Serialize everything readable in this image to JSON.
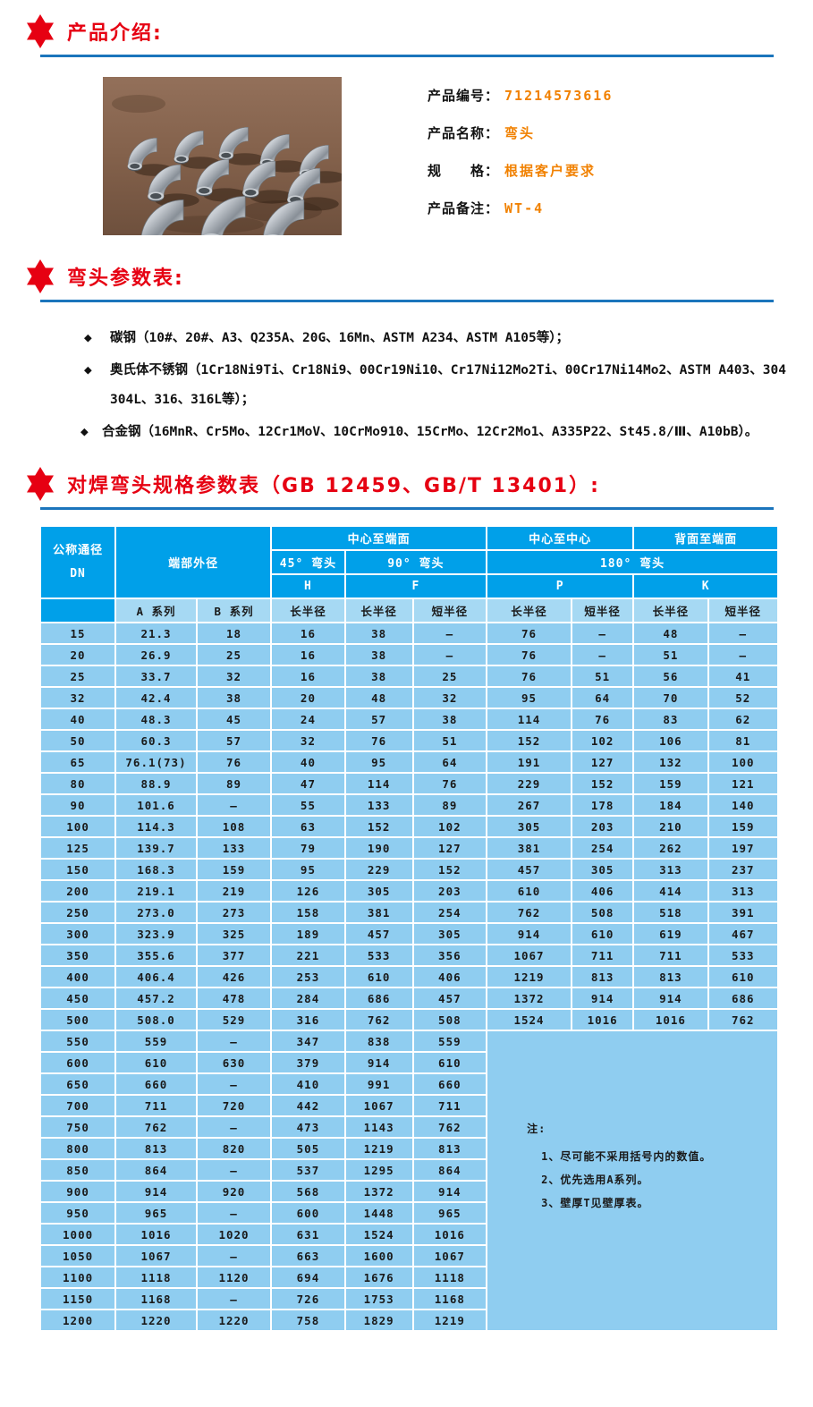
{
  "colors": {
    "accent_red": "#e60012",
    "rule_blue": "#1b75bc",
    "table_header_blue": "#00a0e9",
    "table_subheader_blue": "#a6d9f3",
    "table_row_blue": "#8fcdf0",
    "value_orange": "#f18101"
  },
  "sections": {
    "intro_title": "产品介绍:",
    "params_title": "弯头参数表:",
    "spec_title": "对焊弯头规格参数表（GB 12459、GB/T 13401）:"
  },
  "product": {
    "fields": [
      {
        "label": "产品编号：",
        "value": "71214573616"
      },
      {
        "label": "产品名称：",
        "value": "弯头"
      },
      {
        "label": "规　　格：",
        "value": "根据客户要求"
      },
      {
        "label": "产品备注：",
        "value": "WT-4"
      }
    ]
  },
  "bullet_marker": "◆",
  "materials": [
    "碳钢（10#、20#、A3、Q235A、20G、16Mn、ASTM A234、ASTM A105等）；",
    "奥氏体不锈钢（1Cr18Ni9Ti、Cr18Ni9、00Cr19Ni10、Cr17Ni12Mo2Ti、00Cr17Ni14Mo2、ASTM A403、304 304L、316、316L等）；",
    "合金钢（16MnR、Cr5Mo、12Cr1MoV、10CrMo910、15CrMo、12Cr2Mo1、A335P22、St45.8/Ⅲ、A10bB）。"
  ],
  "table": {
    "header": {
      "dn_title": "公称通径",
      "dn_sub": "DN",
      "end_od": "端部外径",
      "center_to_end": "中心至端面",
      "center_to_center": "中心至中心",
      "back_to_end": "背面至端面",
      "elbow45": "45° 弯头",
      "elbow90": "90° 弯头",
      "elbow180": "180° 弯头",
      "h": "H",
      "f": "F",
      "p": "P",
      "k": "K",
      "series_a": "A 系列",
      "series_b": "B 系列",
      "long_radius": "长半径",
      "short_radius": "短半径"
    },
    "rows": [
      [
        "15",
        "21.3",
        "18",
        "16",
        "38",
        "—",
        "76",
        "—",
        "48",
        "—"
      ],
      [
        "20",
        "26.9",
        "25",
        "16",
        "38",
        "—",
        "76",
        "—",
        "51",
        "—"
      ],
      [
        "25",
        "33.7",
        "32",
        "16",
        "38",
        "25",
        "76",
        "51",
        "56",
        "41"
      ],
      [
        "32",
        "42.4",
        "38",
        "20",
        "48",
        "32",
        "95",
        "64",
        "70",
        "52"
      ],
      [
        "40",
        "48.3",
        "45",
        "24",
        "57",
        "38",
        "114",
        "76",
        "83",
        "62"
      ],
      [
        "50",
        "60.3",
        "57",
        "32",
        "76",
        "51",
        "152",
        "102",
        "106",
        "81"
      ],
      [
        "65",
        "76.1(73)",
        "76",
        "40",
        "95",
        "64",
        "191",
        "127",
        "132",
        "100"
      ],
      [
        "80",
        "88.9",
        "89",
        "47",
        "114",
        "76",
        "229",
        "152",
        "159",
        "121"
      ],
      [
        "90",
        "101.6",
        "—",
        "55",
        "133",
        "89",
        "267",
        "178",
        "184",
        "140"
      ],
      [
        "100",
        "114.3",
        "108",
        "63",
        "152",
        "102",
        "305",
        "203",
        "210",
        "159"
      ],
      [
        "125",
        "139.7",
        "133",
        "79",
        "190",
        "127",
        "381",
        "254",
        "262",
        "197"
      ],
      [
        "150",
        "168.3",
        "159",
        "95",
        "229",
        "152",
        "457",
        "305",
        "313",
        "237"
      ],
      [
        "200",
        "219.1",
        "219",
        "126",
        "305",
        "203",
        "610",
        "406",
        "414",
        "313"
      ],
      [
        "250",
        "273.0",
        "273",
        "158",
        "381",
        "254",
        "762",
        "508",
        "518",
        "391"
      ],
      [
        "300",
        "323.9",
        "325",
        "189",
        "457",
        "305",
        "914",
        "610",
        "619",
        "467"
      ],
      [
        "350",
        "355.6",
        "377",
        "221",
        "533",
        "356",
        "1067",
        "711",
        "711",
        "533"
      ],
      [
        "400",
        "406.4",
        "426",
        "253",
        "610",
        "406",
        "1219",
        "813",
        "813",
        "610"
      ],
      [
        "450",
        "457.2",
        "478",
        "284",
        "686",
        "457",
        "1372",
        "914",
        "914",
        "686"
      ],
      [
        "500",
        "508.0",
        "529",
        "316",
        "762",
        "508",
        "1524",
        "1016",
        "1016",
        "762"
      ],
      [
        "550",
        "559",
        "—",
        "347",
        "838",
        "559"
      ],
      [
        "600",
        "610",
        "630",
        "379",
        "914",
        "610"
      ],
      [
        "650",
        "660",
        "—",
        "410",
        "991",
        "660"
      ],
      [
        "700",
        "711",
        "720",
        "442",
        "1067",
        "711"
      ],
      [
        "750",
        "762",
        "—",
        "473",
        "1143",
        "762"
      ],
      [
        "800",
        "813",
        "820",
        "505",
        "1219",
        "813"
      ],
      [
        "850",
        "864",
        "—",
        "537",
        "1295",
        "864"
      ],
      [
        "900",
        "914",
        "920",
        "568",
        "1372",
        "914"
      ],
      [
        "950",
        "965",
        "—",
        "600",
        "1448",
        "965"
      ],
      [
        "1000",
        "1016",
        "1020",
        "631",
        "1524",
        "1016"
      ],
      [
        "1050",
        "1067",
        "—",
        "663",
        "1600",
        "1067"
      ],
      [
        "1100",
        "1118",
        "1120",
        "694",
        "1676",
        "1118"
      ],
      [
        "1150",
        "1168",
        "—",
        "726",
        "1753",
        "1168"
      ],
      [
        "1200",
        "1220",
        "1220",
        "758",
        "1829",
        "1219"
      ]
    ],
    "note": {
      "title": "注:",
      "items": [
        "1、尽可能不采用括号内的数值。",
        "2、优先选用A系列。",
        "3、壁厚T见壁厚表。"
      ]
    }
  }
}
